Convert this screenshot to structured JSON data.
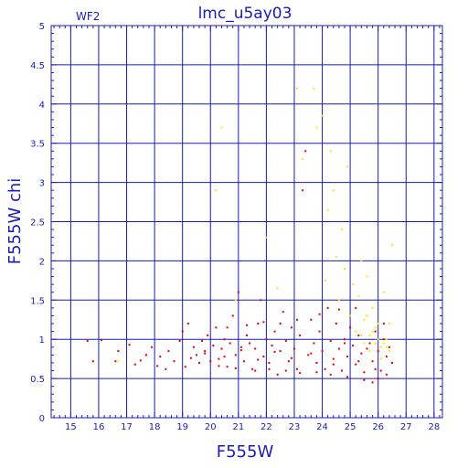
{
  "chart_data": {
    "type": "scatter",
    "title": "lmc_u5ay03",
    "corner_label": "WF2",
    "xlabel": "F555W",
    "ylabel": "F555W chi",
    "xlim": [
      14.3,
      28.3
    ],
    "ylim": [
      0,
      5
    ],
    "x_ticks": [
      "15",
      "16",
      "17",
      "18",
      "19",
      "20",
      "21",
      "22",
      "23",
      "24",
      "25",
      "26",
      "27",
      "28"
    ],
    "y_ticks": [
      "0",
      "0.5",
      "1",
      "1.5",
      "2",
      "2.5",
      "3",
      "3.5",
      "4",
      "4.5",
      "5"
    ],
    "grid": true,
    "colors": {
      "axis": "#1c1cb4",
      "red_points": "#e00000",
      "yellow_points": "#ffe600"
    },
    "series": [
      {
        "color": "red",
        "points": [
          [
            15.6,
            0.98
          ],
          [
            15.8,
            0.72
          ],
          [
            16.1,
            0.99
          ],
          [
            16.6,
            0.72
          ],
          [
            16.7,
            0.85
          ],
          [
            17.1,
            0.93
          ],
          [
            17.3,
            0.68
          ],
          [
            17.5,
            0.73
          ],
          [
            17.7,
            0.8
          ],
          [
            17.9,
            0.9
          ],
          [
            18.1,
            0.66
          ],
          [
            18.2,
            0.78
          ],
          [
            18.4,
            0.62
          ],
          [
            18.5,
            0.85
          ],
          [
            18.7,
            0.72
          ],
          [
            18.9,
            0.98
          ],
          [
            19.0,
            1.1
          ],
          [
            19.1,
            0.65
          ],
          [
            19.2,
            1.2
          ],
          [
            19.4,
            0.9
          ],
          [
            19.5,
            0.8
          ],
          [
            19.7,
            0.98
          ],
          [
            19.8,
            0.85
          ],
          [
            19.9,
            1.05
          ],
          [
            20.0,
            0.72
          ],
          [
            20.1,
            0.92
          ],
          [
            20.2,
            1.15
          ],
          [
            20.3,
            0.75
          ],
          [
            20.4,
            0.88
          ],
          [
            20.5,
            1.0
          ],
          [
            20.6,
            0.65
          ],
          [
            20.7,
            0.95
          ],
          [
            20.8,
            1.3
          ],
          [
            20.9,
            0.8
          ],
          [
            21.0,
            1.6
          ],
          [
            21.1,
            0.9
          ],
          [
            21.2,
            0.72
          ],
          [
            21.3,
            1.05
          ],
          [
            21.4,
            0.95
          ],
          [
            21.5,
            0.62
          ],
          [
            21.6,
            0.88
          ],
          [
            21.7,
            1.2
          ],
          [
            21.8,
            1.5
          ],
          [
            21.9,
            0.78
          ],
          [
            22.0,
            1.0
          ],
          [
            22.1,
            0.7
          ],
          [
            22.2,
            0.92
          ],
          [
            22.3,
            1.1
          ],
          [
            22.4,
            0.55
          ],
          [
            22.5,
            0.85
          ],
          [
            22.6,
            1.35
          ],
          [
            22.7,
            0.98
          ],
          [
            22.8,
            0.72
          ],
          [
            22.9,
            1.15
          ],
          [
            23.0,
            0.88
          ],
          [
            23.1,
            0.62
          ],
          [
            23.2,
            1.05
          ],
          [
            23.3,
            2.9
          ],
          [
            23.4,
            3.4
          ],
          [
            23.5,
            0.8
          ],
          [
            23.6,
            1.25
          ],
          [
            23.7,
            0.95
          ],
          [
            23.8,
            0.7
          ],
          [
            23.9,
            1.1
          ],
          [
            24.0,
            0.85
          ],
          [
            24.1,
            0.62
          ],
          [
            24.2,
            1.4
          ],
          [
            24.3,
            0.98
          ],
          [
            24.4,
            0.75
          ],
          [
            24.5,
            1.2
          ],
          [
            24.6,
            0.88
          ],
          [
            24.7,
            0.6
          ],
          [
            24.8,
            1.0
          ],
          [
            24.9,
            0.78
          ],
          [
            25.0,
            1.15
          ],
          [
            25.1,
            0.92
          ],
          [
            25.2,
            0.68
          ],
          [
            25.3,
            1.05
          ],
          [
            25.4,
            0.82
          ],
          [
            25.5,
            0.58
          ],
          [
            25.6,
            1.3
          ],
          [
            25.7,
            0.95
          ],
          [
            25.8,
            0.72
          ],
          [
            25.9,
            1.1
          ],
          [
            26.0,
            0.85
          ],
          [
            26.1,
            0.6
          ],
          [
            26.2,
            1.0
          ],
          [
            26.3,
            0.78
          ],
          [
            26.4,
            0.9
          ],
          [
            26.5,
            0.7
          ],
          [
            26.0,
            0.5
          ],
          [
            25.8,
            0.45
          ],
          [
            25.5,
            0.48
          ],
          [
            24.9,
            0.52
          ],
          [
            24.3,
            0.55
          ],
          [
            23.8,
            0.58
          ],
          [
            23.2,
            0.57
          ],
          [
            22.7,
            0.6
          ],
          [
            22.1,
            0.62
          ],
          [
            21.6,
            0.6
          ],
          [
            20.9,
            0.63
          ],
          [
            20.3,
            0.66
          ],
          [
            19.6,
            0.7
          ],
          [
            25.2,
            1.4
          ],
          [
            24.6,
            1.38
          ],
          [
            23.9,
            1.32
          ],
          [
            23.1,
            1.25
          ],
          [
            22.5,
            1.2
          ],
          [
            21.9,
            1.22
          ],
          [
            21.3,
            1.18
          ],
          [
            20.6,
            1.15
          ],
          [
            26.3,
            0.55
          ],
          [
            26.2,
            1.2
          ],
          [
            25.9,
            0.62
          ],
          [
            25.6,
            0.88
          ],
          [
            25.3,
            0.72
          ],
          [
            24.8,
            0.95
          ],
          [
            24.4,
            0.68
          ],
          [
            23.6,
            0.82
          ],
          [
            22.9,
            0.76
          ],
          [
            22.3,
            0.84
          ],
          [
            21.7,
            0.74
          ],
          [
            21.1,
            0.86
          ],
          [
            20.5,
            0.78
          ],
          [
            19.8,
            0.82
          ],
          [
            19.3,
            0.76
          ]
        ]
      },
      {
        "color": "yellow",
        "points": [
          [
            16.7,
            0.72
          ],
          [
            20.2,
            2.9
          ],
          [
            20.4,
            3.7
          ],
          [
            20.9,
            1.5
          ],
          [
            22.0,
            2.3
          ],
          [
            22.4,
            1.65
          ],
          [
            23.1,
            4.2
          ],
          [
            23.3,
            3.3
          ],
          [
            23.7,
            4.2
          ],
          [
            23.8,
            3.7
          ],
          [
            24.0,
            3.85
          ],
          [
            24.1,
            1.75
          ],
          [
            24.2,
            2.65
          ],
          [
            24.3,
            3.4
          ],
          [
            24.4,
            2.9
          ],
          [
            24.5,
            2.05
          ],
          [
            24.6,
            1.5
          ],
          [
            24.7,
            2.4
          ],
          [
            24.8,
            1.9
          ],
          [
            24.9,
            3.2
          ],
          [
            25.0,
            1.3
          ],
          [
            25.1,
            1.7
          ],
          [
            25.2,
            1.1
          ],
          [
            25.3,
            1.55
          ],
          [
            25.4,
            2.0
          ],
          [
            25.5,
            1.25
          ],
          [
            25.6,
            1.8
          ],
          [
            25.7,
            1.05
          ],
          [
            25.8,
            1.4
          ],
          [
            25.9,
            0.95
          ],
          [
            26.0,
            1.2
          ],
          [
            26.1,
            0.9
          ],
          [
            26.2,
            1.6
          ],
          [
            26.3,
            1.0
          ],
          [
            26.4,
            0.85
          ],
          [
            26.5,
            2.2
          ],
          [
            25.5,
            0.95
          ],
          [
            25.7,
            0.85
          ],
          [
            25.9,
            1.15
          ],
          [
            26.1,
            0.75
          ],
          [
            26.3,
            0.9
          ],
          [
            25.8,
            1.1
          ],
          [
            26.0,
            1.0
          ],
          [
            25.6,
            1.3
          ],
          [
            26.2,
            0.95
          ],
          [
            25.4,
            1.05
          ],
          [
            26.4,
            1.2
          ]
        ]
      }
    ]
  }
}
